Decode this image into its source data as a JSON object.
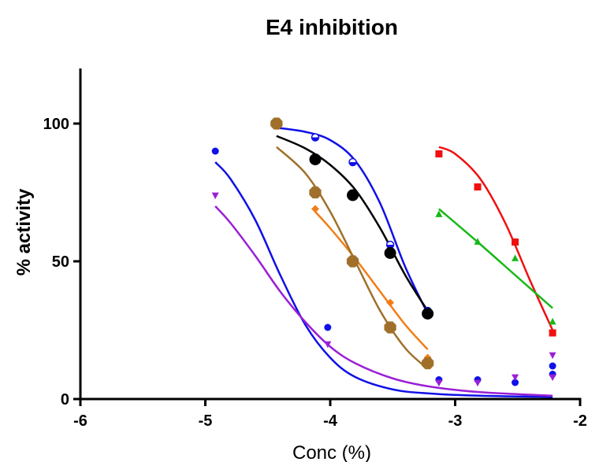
{
  "chart_data": {
    "type": "scatter",
    "title": "E4 inhibition",
    "xlabel": "Conc (%)",
    "ylabel": "% activity",
    "xlim": [
      -6,
      -2
    ],
    "ylim": [
      0,
      120
    ],
    "x_ticks": [
      -6,
      -5,
      -4,
      -3,
      -2
    ],
    "x_tick_labels": [
      "-6",
      "-5",
      "-4",
      "-3",
      "-2"
    ],
    "y_ticks": [
      0,
      50,
      100
    ],
    "y_tick_labels": [
      "0",
      "50",
      "100"
    ],
    "grid": false,
    "legend": "none",
    "series": [
      {
        "color": "#1010e8",
        "marker": "circle",
        "marker_size": "small",
        "x": [
          -4.92,
          -4.02,
          -3.13,
          -2.82,
          -2.52,
          -2.22,
          -2.22
        ],
        "y": [
          90,
          26,
          7,
          7,
          6,
          12,
          9
        ],
        "fit": [
          [
            -4.92,
            86
          ],
          [
            -4.8,
            80
          ],
          [
            -4.6,
            65
          ],
          [
            -4.4,
            45
          ],
          [
            -4.2,
            27
          ],
          [
            -4.0,
            15
          ],
          [
            -3.8,
            8
          ],
          [
            -3.5,
            3.5
          ],
          [
            -3.2,
            2.0
          ],
          [
            -2.8,
            1.2
          ],
          [
            -2.22,
            0.8
          ]
        ]
      },
      {
        "color": "#9b1fd6",
        "marker": "triangle-down",
        "marker_size": "small",
        "x": [
          -4.92,
          -4.02,
          -3.13,
          -2.82,
          -2.52,
          -2.22,
          -2.22
        ],
        "y": [
          74,
          20,
          6,
          6,
          8,
          16,
          8
        ],
        "fit": [
          [
            -4.92,
            70
          ],
          [
            -4.8,
            64
          ],
          [
            -4.6,
            52
          ],
          [
            -4.4,
            39
          ],
          [
            -4.2,
            28
          ],
          [
            -4.0,
            19
          ],
          [
            -3.8,
            13
          ],
          [
            -3.5,
            7.5
          ],
          [
            -3.2,
            4.5
          ],
          [
            -2.8,
            2.5
          ],
          [
            -2.22,
            1.2
          ]
        ]
      },
      {
        "color": "#1010e8",
        "marker": "half-circle",
        "marker_size": "small",
        "x": [
          -4.43,
          -4.12,
          -3.82,
          -3.52,
          -3.22
        ],
        "y": [
          100,
          95,
          86,
          56,
          32
        ],
        "fit": [
          [
            -4.43,
            98.5
          ],
          [
            -4.2,
            97
          ],
          [
            -4.0,
            94
          ],
          [
            -3.8,
            86.5
          ],
          [
            -3.6,
            71
          ],
          [
            -3.4,
            48
          ],
          [
            -3.22,
            31
          ]
        ]
      },
      {
        "color": "#000000",
        "marker": "circle",
        "marker_size": "large",
        "x": [
          -4.43,
          -4.12,
          -3.82,
          -3.52,
          -3.22
        ],
        "y": [
          100,
          87,
          74,
          53,
          31
        ],
        "fit": [
          [
            -4.43,
            95.5
          ],
          [
            -4.2,
            91
          ],
          [
            -4.0,
            85
          ],
          [
            -3.8,
            76
          ],
          [
            -3.6,
            62
          ],
          [
            -3.4,
            45
          ],
          [
            -3.22,
            32
          ]
        ]
      },
      {
        "color": "#f27d16",
        "marker": "diamond",
        "marker_size": "small",
        "x": [
          -4.12,
          -3.82,
          -3.52,
          -3.22
        ],
        "y": [
          69,
          50,
          35,
          15
        ],
        "fit": [
          [
            -4.12,
            68
          ],
          [
            -4.0,
            62
          ],
          [
            -3.8,
            51
          ],
          [
            -3.6,
            39
          ],
          [
            -3.4,
            27
          ],
          [
            -3.22,
            18
          ]
        ]
      },
      {
        "color": "#a0702a",
        "marker": "octagon",
        "marker_size": "large",
        "x": [
          -4.43,
          -4.12,
          -3.82,
          -3.52,
          -3.22
        ],
        "y": [
          100,
          75,
          50,
          26,
          13
        ],
        "fit": [
          [
            -4.43,
            91.5
          ],
          [
            -4.2,
            82
          ],
          [
            -4.0,
            68
          ],
          [
            -3.8,
            50
          ],
          [
            -3.6,
            32
          ],
          [
            -3.4,
            18.5
          ],
          [
            -3.22,
            11
          ]
        ]
      },
      {
        "color": "#f01010",
        "marker": "square",
        "marker_size": "small",
        "x": [
          -3.13,
          -2.82,
          -2.52,
          -2.22
        ],
        "y": [
          89,
          77,
          57,
          24
        ],
        "fit": [
          [
            -3.13,
            91.5
          ],
          [
            -3.0,
            89
          ],
          [
            -2.8,
            80
          ],
          [
            -2.6,
            64
          ],
          [
            -2.4,
            43
          ],
          [
            -2.22,
            25
          ]
        ]
      },
      {
        "color": "#18b818",
        "marker": "triangle-up",
        "marker_size": "small",
        "x": [
          -3.13,
          -2.82,
          -2.52,
          -2.22
        ],
        "y": [
          67,
          57,
          51,
          28
        ],
        "fit": [
          [
            -3.13,
            69
          ],
          [
            -2.82,
            57
          ],
          [
            -2.52,
            45
          ],
          [
            -2.22,
            33
          ]
        ]
      }
    ]
  }
}
